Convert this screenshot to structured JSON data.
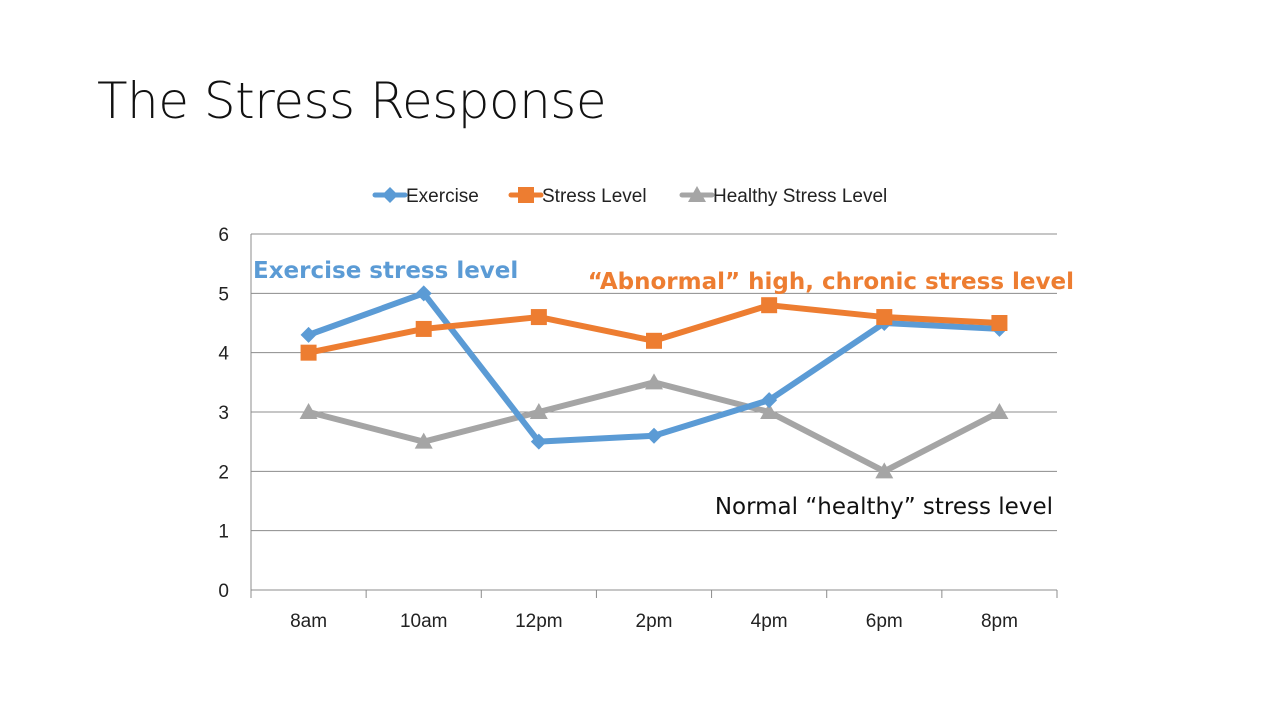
{
  "slide": {
    "title": "The Stress Response"
  },
  "chart_data": {
    "type": "line",
    "title": "",
    "xlabel": "",
    "ylabel": "",
    "categories": [
      "8am",
      "10am",
      "12pm",
      "2pm",
      "4pm",
      "6pm",
      "8pm"
    ],
    "ylim": [
      0,
      6
    ],
    "yticks": [
      0,
      1,
      2,
      3,
      4,
      5,
      6
    ],
    "grid": true,
    "legend_position": "top",
    "series": [
      {
        "name": "Exercise",
        "color": "#5B9BD5",
        "marker": "diamond",
        "values": [
          4.3,
          5.0,
          2.5,
          2.6,
          3.2,
          4.5,
          4.4
        ]
      },
      {
        "name": "Stress Level",
        "color": "#ED7D31",
        "marker": "square",
        "values": [
          4.0,
          4.4,
          4.6,
          4.2,
          4.8,
          4.6,
          4.5
        ]
      },
      {
        "name": "Healthy Stress Level",
        "color": "#A5A5A5",
        "marker": "triangle",
        "values": [
          3.0,
          2.5,
          3.0,
          3.5,
          3.0,
          2.0,
          3.0
        ]
      }
    ],
    "annotations": [
      {
        "text": "Exercise stress level",
        "color": "#5B9BD5"
      },
      {
        "text": "“Abnormal” high, chronic stress level",
        "color": "#ED7D31"
      },
      {
        "text": "Normal “healthy” stress level",
        "color": "#111111"
      }
    ]
  }
}
